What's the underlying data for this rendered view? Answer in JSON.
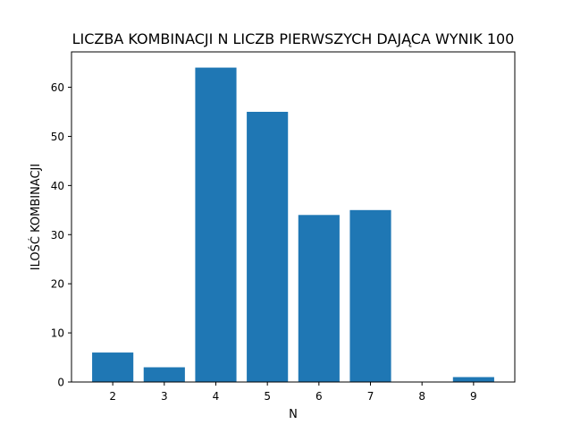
{
  "chart_data": {
    "type": "bar",
    "title": "LICZBA KOMBINACJI N LICZB PIERWSZYCH DAJĄCA WYNIK 100",
    "xlabel": "N",
    "ylabel": "ILOŚĆ KOMBINACJI",
    "categories": [
      "2",
      "3",
      "4",
      "5",
      "6",
      "7",
      "8",
      "9"
    ],
    "x": [
      2,
      3,
      4,
      5,
      6,
      7,
      8,
      9
    ],
    "values": [
      6,
      3,
      64,
      55,
      34,
      35,
      0,
      1
    ],
    "xlim": [
      1.2,
      9.8
    ],
    "ylim": [
      0,
      67.2
    ],
    "yticks": [
      0,
      10,
      20,
      30,
      40,
      50,
      60
    ],
    "xticks": [
      2,
      3,
      4,
      5,
      6,
      7,
      8,
      9
    ],
    "bar_color": "#1f77b4",
    "grid": false,
    "legend": "none"
  }
}
